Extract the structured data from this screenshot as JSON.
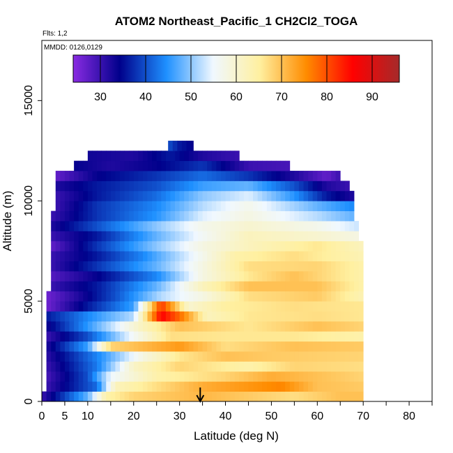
{
  "chart_data": {
    "type": "heatmap",
    "title": "ATOM2 Northeast_Pacific_1 CH2Cl2_TOGA",
    "flights_label": "Flts: 1,2",
    "dates_label": "MMDD: 0126,0129",
    "xlabel": "Latitude (deg N)",
    "ylabel": "Altitude (m)",
    "xlim": [
      0,
      85
    ],
    "ylim": [
      0,
      18000
    ],
    "x_ticks": [
      0,
      5,
      10,
      20,
      30,
      40,
      50,
      60,
      70,
      80
    ],
    "y_ticks": [
      0,
      5000,
      10000,
      15000
    ],
    "colorbar": {
      "min": 24,
      "max": 96,
      "ticks": [
        30,
        40,
        50,
        60,
        70,
        80,
        90
      ],
      "colors": [
        "#8a2be2",
        "#00008b",
        "#1e90ff",
        "#f0f8ff",
        "#fff0a0",
        "#ff8c00",
        "#ff0000",
        "#a52a2a"
      ]
    },
    "marker": {
      "latitude": 34.5,
      "symbol": "down-arrow"
    },
    "altitude_bands": [
      {
        "alt_bottom": 0,
        "alt_top": 500,
        "lat_start": 0,
        "lat_end": 70,
        "values": [
          [
            0,
            30
          ],
          [
            10,
            48
          ],
          [
            14,
            64
          ],
          [
            20,
            68
          ],
          [
            35,
            71
          ],
          [
            45,
            69
          ],
          [
            55,
            67
          ],
          [
            65,
            70
          ],
          [
            70,
            70
          ]
        ]
      },
      {
        "alt_bottom": 500,
        "alt_top": 1000,
        "lat_start": 1,
        "lat_end": 70,
        "values": [
          [
            1,
            30
          ],
          [
            12,
            42
          ],
          [
            16,
            62
          ],
          [
            25,
            67
          ],
          [
            35,
            72
          ],
          [
            52,
            76
          ],
          [
            60,
            70
          ],
          [
            70,
            69
          ]
        ]
      },
      {
        "alt_bottom": 1000,
        "alt_top": 1500,
        "lat_start": 1,
        "lat_end": 70,
        "values": [
          [
            1,
            29
          ],
          [
            10,
            40
          ],
          [
            15,
            55
          ],
          [
            25,
            64
          ],
          [
            40,
            68
          ],
          [
            50,
            72
          ],
          [
            60,
            70
          ],
          [
            70,
            68
          ]
        ]
      },
      {
        "alt_bottom": 1500,
        "alt_top": 2000,
        "lat_start": 1,
        "lat_end": 70,
        "values": [
          [
            1,
            30
          ],
          [
            12,
            43
          ],
          [
            20,
            61
          ],
          [
            30,
            68
          ],
          [
            45,
            64
          ],
          [
            55,
            68
          ],
          [
            70,
            67
          ]
        ]
      },
      {
        "alt_bottom": 2000,
        "alt_top": 2500,
        "lat_start": 1,
        "lat_end": 70,
        "values": [
          [
            1,
            31
          ],
          [
            13,
            45
          ],
          [
            22,
            58
          ],
          [
            30,
            66
          ],
          [
            40,
            70
          ],
          [
            50,
            69
          ],
          [
            70,
            68
          ]
        ]
      },
      {
        "alt_bottom": 2500,
        "alt_top": 3000,
        "lat_start": 1,
        "lat_end": 70,
        "values": [
          [
            1,
            32
          ],
          [
            10,
            46
          ],
          [
            15,
            68
          ],
          [
            25,
            72
          ],
          [
            30,
            74
          ],
          [
            40,
            67
          ],
          [
            55,
            70
          ],
          [
            70,
            69
          ]
        ]
      },
      {
        "alt_bottom": 3000,
        "alt_top": 3500,
        "lat_start": 1,
        "lat_end": 70,
        "values": [
          [
            1,
            30
          ],
          [
            10,
            40
          ],
          [
            20,
            56
          ],
          [
            28,
            67
          ],
          [
            40,
            66
          ],
          [
            55,
            66
          ],
          [
            70,
            64
          ]
        ]
      },
      {
        "alt_bottom": 3500,
        "alt_top": 4000,
        "lat_start": 1,
        "lat_end": 70,
        "values": [
          [
            1,
            33
          ],
          [
            12,
            48
          ],
          [
            22,
            62
          ],
          [
            30,
            70
          ],
          [
            45,
            66
          ],
          [
            60,
            70
          ],
          [
            70,
            68
          ]
        ]
      },
      {
        "alt_bottom": 4000,
        "alt_top": 4500,
        "lat_start": 1,
        "lat_end": 70,
        "values": [
          [
            1,
            36
          ],
          [
            10,
            44
          ],
          [
            20,
            52
          ],
          [
            26,
            86
          ],
          [
            30,
            78
          ],
          [
            36,
            62
          ],
          [
            45,
            66
          ],
          [
            60,
            67
          ],
          [
            70,
            66
          ]
        ]
      },
      {
        "alt_bottom": 4500,
        "alt_top": 5000,
        "lat_start": 1,
        "lat_end": 70,
        "values": [
          [
            1,
            26
          ],
          [
            10,
            36
          ],
          [
            20,
            46
          ],
          [
            26,
            82
          ],
          [
            32,
            60
          ],
          [
            40,
            65
          ],
          [
            55,
            67
          ],
          [
            70,
            66
          ]
        ]
      },
      {
        "alt_bottom": 5000,
        "alt_top": 5500,
        "lat_start": 1,
        "lat_end": 70,
        "values": [
          [
            1,
            26
          ],
          [
            8,
            32
          ],
          [
            16,
            40
          ],
          [
            26,
            52
          ],
          [
            35,
            58
          ],
          [
            45,
            67
          ],
          [
            60,
            69
          ],
          [
            70,
            63
          ]
        ]
      },
      {
        "alt_bottom": 5500,
        "alt_top": 6000,
        "lat_start": 2,
        "lat_end": 70,
        "values": [
          [
            2,
            30
          ],
          [
            12,
            36
          ],
          [
            25,
            48
          ],
          [
            35,
            62
          ],
          [
            45,
            70
          ],
          [
            60,
            70
          ],
          [
            70,
            64
          ]
        ]
      },
      {
        "alt_bottom": 6000,
        "alt_top": 6500,
        "lat_start": 2,
        "lat_end": 70,
        "values": [
          [
            2,
            28
          ],
          [
            12,
            34
          ],
          [
            25,
            44
          ],
          [
            35,
            58
          ],
          [
            45,
            66
          ],
          [
            55,
            70
          ],
          [
            70,
            64
          ]
        ]
      },
      {
        "alt_bottom": 6500,
        "alt_top": 7000,
        "lat_start": 2,
        "lat_end": 70,
        "values": [
          [
            2,
            30
          ],
          [
            12,
            38
          ],
          [
            25,
            48
          ],
          [
            35,
            58
          ],
          [
            45,
            67
          ],
          [
            60,
            68
          ],
          [
            70,
            64
          ]
        ]
      },
      {
        "alt_bottom": 7000,
        "alt_top": 7500,
        "lat_start": 2,
        "lat_end": 70,
        "values": [
          [
            2,
            30
          ],
          [
            12,
            36
          ],
          [
            22,
            44
          ],
          [
            32,
            54
          ],
          [
            42,
            64
          ],
          [
            55,
            67
          ],
          [
            70,
            63
          ]
        ]
      },
      {
        "alt_bottom": 7500,
        "alt_top": 8000,
        "lat_start": 2,
        "lat_end": 70,
        "values": [
          [
            2,
            27
          ],
          [
            12,
            38
          ],
          [
            25,
            50
          ],
          [
            35,
            58
          ],
          [
            45,
            62
          ],
          [
            60,
            66
          ],
          [
            70,
            62
          ]
        ]
      },
      {
        "alt_bottom": 8000,
        "alt_top": 8500,
        "lat_start": 2,
        "lat_end": 69,
        "values": [
          [
            2,
            30
          ],
          [
            12,
            36
          ],
          [
            25,
            48
          ],
          [
            35,
            56
          ],
          [
            45,
            62
          ],
          [
            60,
            60
          ],
          [
            69,
            58
          ]
        ]
      },
      {
        "alt_bottom": 8500,
        "alt_top": 9000,
        "lat_start": 2,
        "lat_end": 69,
        "values": [
          [
            2,
            32
          ],
          [
            12,
            40
          ],
          [
            25,
            50
          ],
          [
            35,
            57
          ],
          [
            45,
            60
          ],
          [
            60,
            57
          ],
          [
            69,
            53
          ]
        ]
      },
      {
        "alt_bottom": 9000,
        "alt_top": 9500,
        "lat_start": 2,
        "lat_end": 68,
        "values": [
          [
            2,
            30
          ],
          [
            12,
            38
          ],
          [
            25,
            45
          ],
          [
            35,
            54
          ],
          [
            45,
            58
          ],
          [
            60,
            52
          ],
          [
            68,
            48
          ]
        ]
      },
      {
        "alt_bottom": 9500,
        "alt_top": 10000,
        "lat_start": 3,
        "lat_end": 68,
        "values": [
          [
            3,
            30
          ],
          [
            12,
            38
          ],
          [
            25,
            44
          ],
          [
            35,
            52
          ],
          [
            45,
            57
          ],
          [
            60,
            48
          ],
          [
            68,
            44
          ]
        ]
      },
      {
        "alt_bottom": 10000,
        "alt_top": 10500,
        "lat_start": 3,
        "lat_end": 68,
        "values": [
          [
            3,
            30
          ],
          [
            12,
            36
          ],
          [
            25,
            42
          ],
          [
            35,
            50
          ],
          [
            45,
            54
          ],
          [
            55,
            45
          ],
          [
            62,
            36
          ],
          [
            68,
            32
          ]
        ]
      },
      {
        "alt_bottom": 10500,
        "alt_top": 11000,
        "lat_start": 3,
        "lat_end": 67,
        "values": [
          [
            3,
            32
          ],
          [
            12,
            36
          ],
          [
            25,
            40
          ],
          [
            35,
            46
          ],
          [
            45,
            48
          ],
          [
            55,
            40
          ],
          [
            62,
            32
          ],
          [
            67,
            30
          ]
        ]
      },
      {
        "alt_bottom": 11000,
        "alt_top": 11500,
        "lat_start": 3,
        "lat_end": 65,
        "values": [
          [
            3,
            27
          ],
          [
            12,
            34
          ],
          [
            25,
            38
          ],
          [
            35,
            42
          ],
          [
            45,
            38
          ],
          [
            55,
            32
          ],
          [
            62,
            27
          ],
          [
            65,
            30
          ]
        ]
      },
      {
        "alt_bottom": 11500,
        "alt_top": 12000,
        "lat_start": 7,
        "lat_end": 54,
        "values": [
          [
            7,
            34
          ],
          [
            15,
            32
          ],
          [
            25,
            34
          ],
          [
            35,
            38
          ],
          [
            45,
            30
          ],
          [
            54,
            29
          ]
        ]
      },
      {
        "alt_bottom": 12000,
        "alt_top": 12500,
        "lat_start": 10,
        "lat_end": 43,
        "values": [
          [
            10,
            33
          ],
          [
            20,
            32
          ],
          [
            28,
            36
          ],
          [
            35,
            32
          ],
          [
            43,
            30
          ]
        ]
      },
      {
        "alt_bottom": 12500,
        "alt_top": 13000,
        "lat_start": 27.5,
        "lat_end": 33,
        "values": [
          [
            27.5,
            40
          ],
          [
            30,
            36
          ],
          [
            33,
            34
          ]
        ]
      }
    ]
  }
}
